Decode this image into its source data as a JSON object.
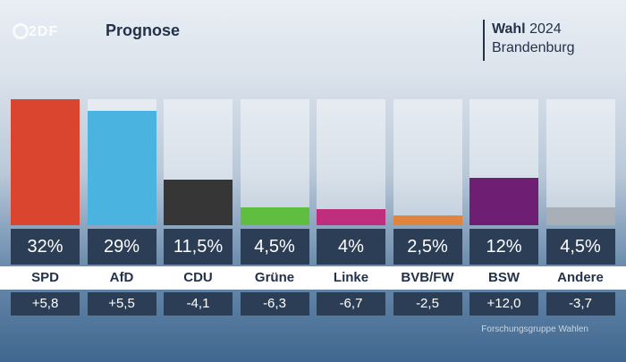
{
  "header": {
    "logo_text": "2DF",
    "title": "Prognose",
    "election_bold": "Wahl",
    "election_year": "2024",
    "region": "Brandenburg"
  },
  "chart_data": {
    "type": "bar",
    "title": "Prognose",
    "ylim": [
      0,
      32
    ],
    "categories": [
      "SPD",
      "AfD",
      "CDU",
      "Grüne",
      "Linke",
      "BVB/FW",
      "BSW",
      "Andere"
    ],
    "values": [
      32,
      29,
      11.5,
      4.5,
      4,
      2.5,
      12,
      4.5
    ],
    "value_labels": [
      "32%",
      "29%",
      "11,5%",
      "4,5%",
      "4%",
      "2,5%",
      "12%",
      "4,5%"
    ],
    "changes": [
      "+5,8",
      "+5,5",
      "-4,1",
      "-6,3",
      "-6,7",
      "-2,5",
      "+12,0",
      "-3,7"
    ],
    "colors": [
      "#d9452f",
      "#4ab3e0",
      "#363636",
      "#5fbd3f",
      "#bf2e7c",
      "#e1843e",
      "#6e1f73",
      "#a9afb6"
    ]
  },
  "source": "Forschungsgruppe Wahlen"
}
